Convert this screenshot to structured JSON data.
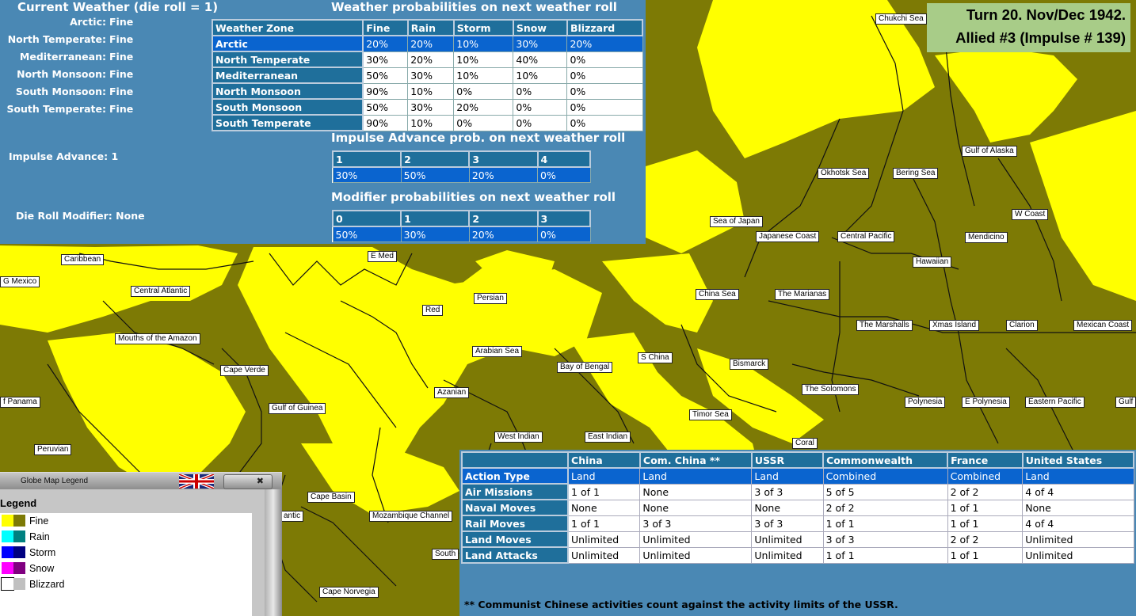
{
  "turn": {
    "line1": "Turn 20.  Nov/Dec 1942.",
    "line2": "Allied #3 (Impulse # 139)"
  },
  "weather": {
    "current_title": "Current Weather (die roll = 1)",
    "zones": [
      {
        "name": "Arctic:",
        "value": "Fine"
      },
      {
        "name": "North Temperate:",
        "value": "Fine"
      },
      {
        "name": "Mediterranean:",
        "value": "Fine"
      },
      {
        "name": "North Monsoon:",
        "value": "Fine"
      },
      {
        "name": "South Monsoon:",
        "value": "Fine"
      },
      {
        "name": "South Temperate:",
        "value": "Fine"
      }
    ],
    "impulse_advance_label": "Impulse Advance:",
    "impulse_advance_value": "1",
    "die_roll_modifier_label": "Die Roll Modifier:",
    "die_roll_modifier_value": "None",
    "prob_title": "Weather probabilities on next weather roll",
    "prob_headers": [
      "Weather Zone",
      "Fine",
      "Rain",
      "Storm",
      "Snow",
      "Blizzard"
    ],
    "prob_rows": [
      [
        "Arctic",
        "20%",
        "20%",
        "10%",
        "30%",
        "20%"
      ],
      [
        "North Temperate",
        "30%",
        "20%",
        "10%",
        "40%",
        "0%"
      ],
      [
        "Mediterranean",
        "50%",
        "30%",
        "10%",
        "10%",
        "0%"
      ],
      [
        "North Monsoon",
        "90%",
        "10%",
        "0%",
        "0%",
        "0%"
      ],
      [
        "South Monsoon",
        "50%",
        "30%",
        "20%",
        "0%",
        "0%"
      ],
      [
        "South Temperate",
        "90%",
        "10%",
        "0%",
        "0%",
        "0%"
      ]
    ],
    "impulse_title": "Impulse Advance prob. on next weather roll",
    "impulse_headers": [
      "1",
      "2",
      "3",
      "4"
    ],
    "impulse_values": [
      "30%",
      "50%",
      "20%",
      "0%"
    ],
    "modifier_title": "Modifier probabilities on next weather roll",
    "modifier_headers": [
      "0",
      "1",
      "2",
      "3"
    ],
    "modifier_values": [
      "50%",
      "30%",
      "20%",
      "0%"
    ]
  },
  "sea_labels": [
    "Chukchi Sea",
    "Gulf of Alaska",
    "Okhotsk Sea",
    "Bering Sea",
    "W Coast",
    "Sea of Japan",
    "Japanese Coast",
    "Central Pacific",
    "Mendicino",
    "Hawaiian",
    "E Med",
    "Caribbean",
    "G Mexico",
    "Central Atlantic",
    "China Sea",
    "The Marianas",
    "Persian",
    "Red",
    "The Marshalls",
    "Xmas Island",
    "Clarion",
    "Mexican Coast",
    "Mouths of the Amazon",
    "Arabian Sea",
    "S China",
    "Bismarck",
    "Cape Verde",
    "Bay of Bengal",
    "The Solomons",
    "Azanian",
    "Polynesia",
    "E Polynesia",
    "Eastern Pacific",
    "Gulf",
    "f Panama",
    "Gulf of Guinea",
    "Timor Sea",
    "West Indian",
    "East Indian",
    "Coral",
    "Peruvian",
    "Cape Basin",
    "antic",
    "Mozambique Channel",
    "South",
    "Cape Norvegia"
  ],
  "legend": {
    "window_title": "Globe Map Legend",
    "heading": "Legend",
    "items": [
      {
        "label": "Fine",
        "c1": "#ffff00",
        "c2": "#7d7a05"
      },
      {
        "label": "Rain",
        "c1": "#00ffff",
        "c2": "#008080"
      },
      {
        "label": "Storm",
        "c1": "#0000ff",
        "c2": "#000080"
      },
      {
        "label": "Snow",
        "c1": "#ff00ff",
        "c2": "#800080"
      },
      {
        "label": "Blizzard",
        "c1": "#ffffff",
        "c2": "#c0c0c0"
      }
    ]
  },
  "actions": {
    "headers": [
      "",
      "China",
      "Com. China **",
      "USSR",
      "Commonwealth",
      "France",
      "United States"
    ],
    "rows": [
      [
        "Action Type",
        "Land",
        "Land",
        "Land",
        "Combined",
        "Combined",
        "Land"
      ],
      [
        "Air Missions",
        "1 of 1",
        "None",
        "3 of 3",
        "5 of 5",
        "2 of 2",
        "4 of 4"
      ],
      [
        "Naval Moves",
        "None",
        "None",
        "None",
        "2 of 2",
        "1 of 1",
        "None"
      ],
      [
        "Rail Moves",
        "1 of 1",
        "3 of 3",
        "3 of 3",
        "1 of 1",
        "1 of 1",
        "4 of 4"
      ],
      [
        "Land Moves",
        "Unlimited",
        "Unlimited",
        "Unlimited",
        "3 of 3",
        "2 of 2",
        "Unlimited"
      ],
      [
        "Land Attacks",
        "Unlimited",
        "Unlimited",
        "Unlimited",
        "1 of 1",
        "1 of 1",
        "Unlimited"
      ]
    ],
    "note": "** Communist Chinese activities count against the activity limits of the USSR."
  },
  "colors": {
    "panel_bg": "#4a88b4",
    "header_bg": "#1f6f9b",
    "selected_row": "#0a64cf",
    "map_fine_dark": "#7d7a05",
    "map_fine_light": "#ffff00",
    "turn_box": "#a8cc88"
  }
}
